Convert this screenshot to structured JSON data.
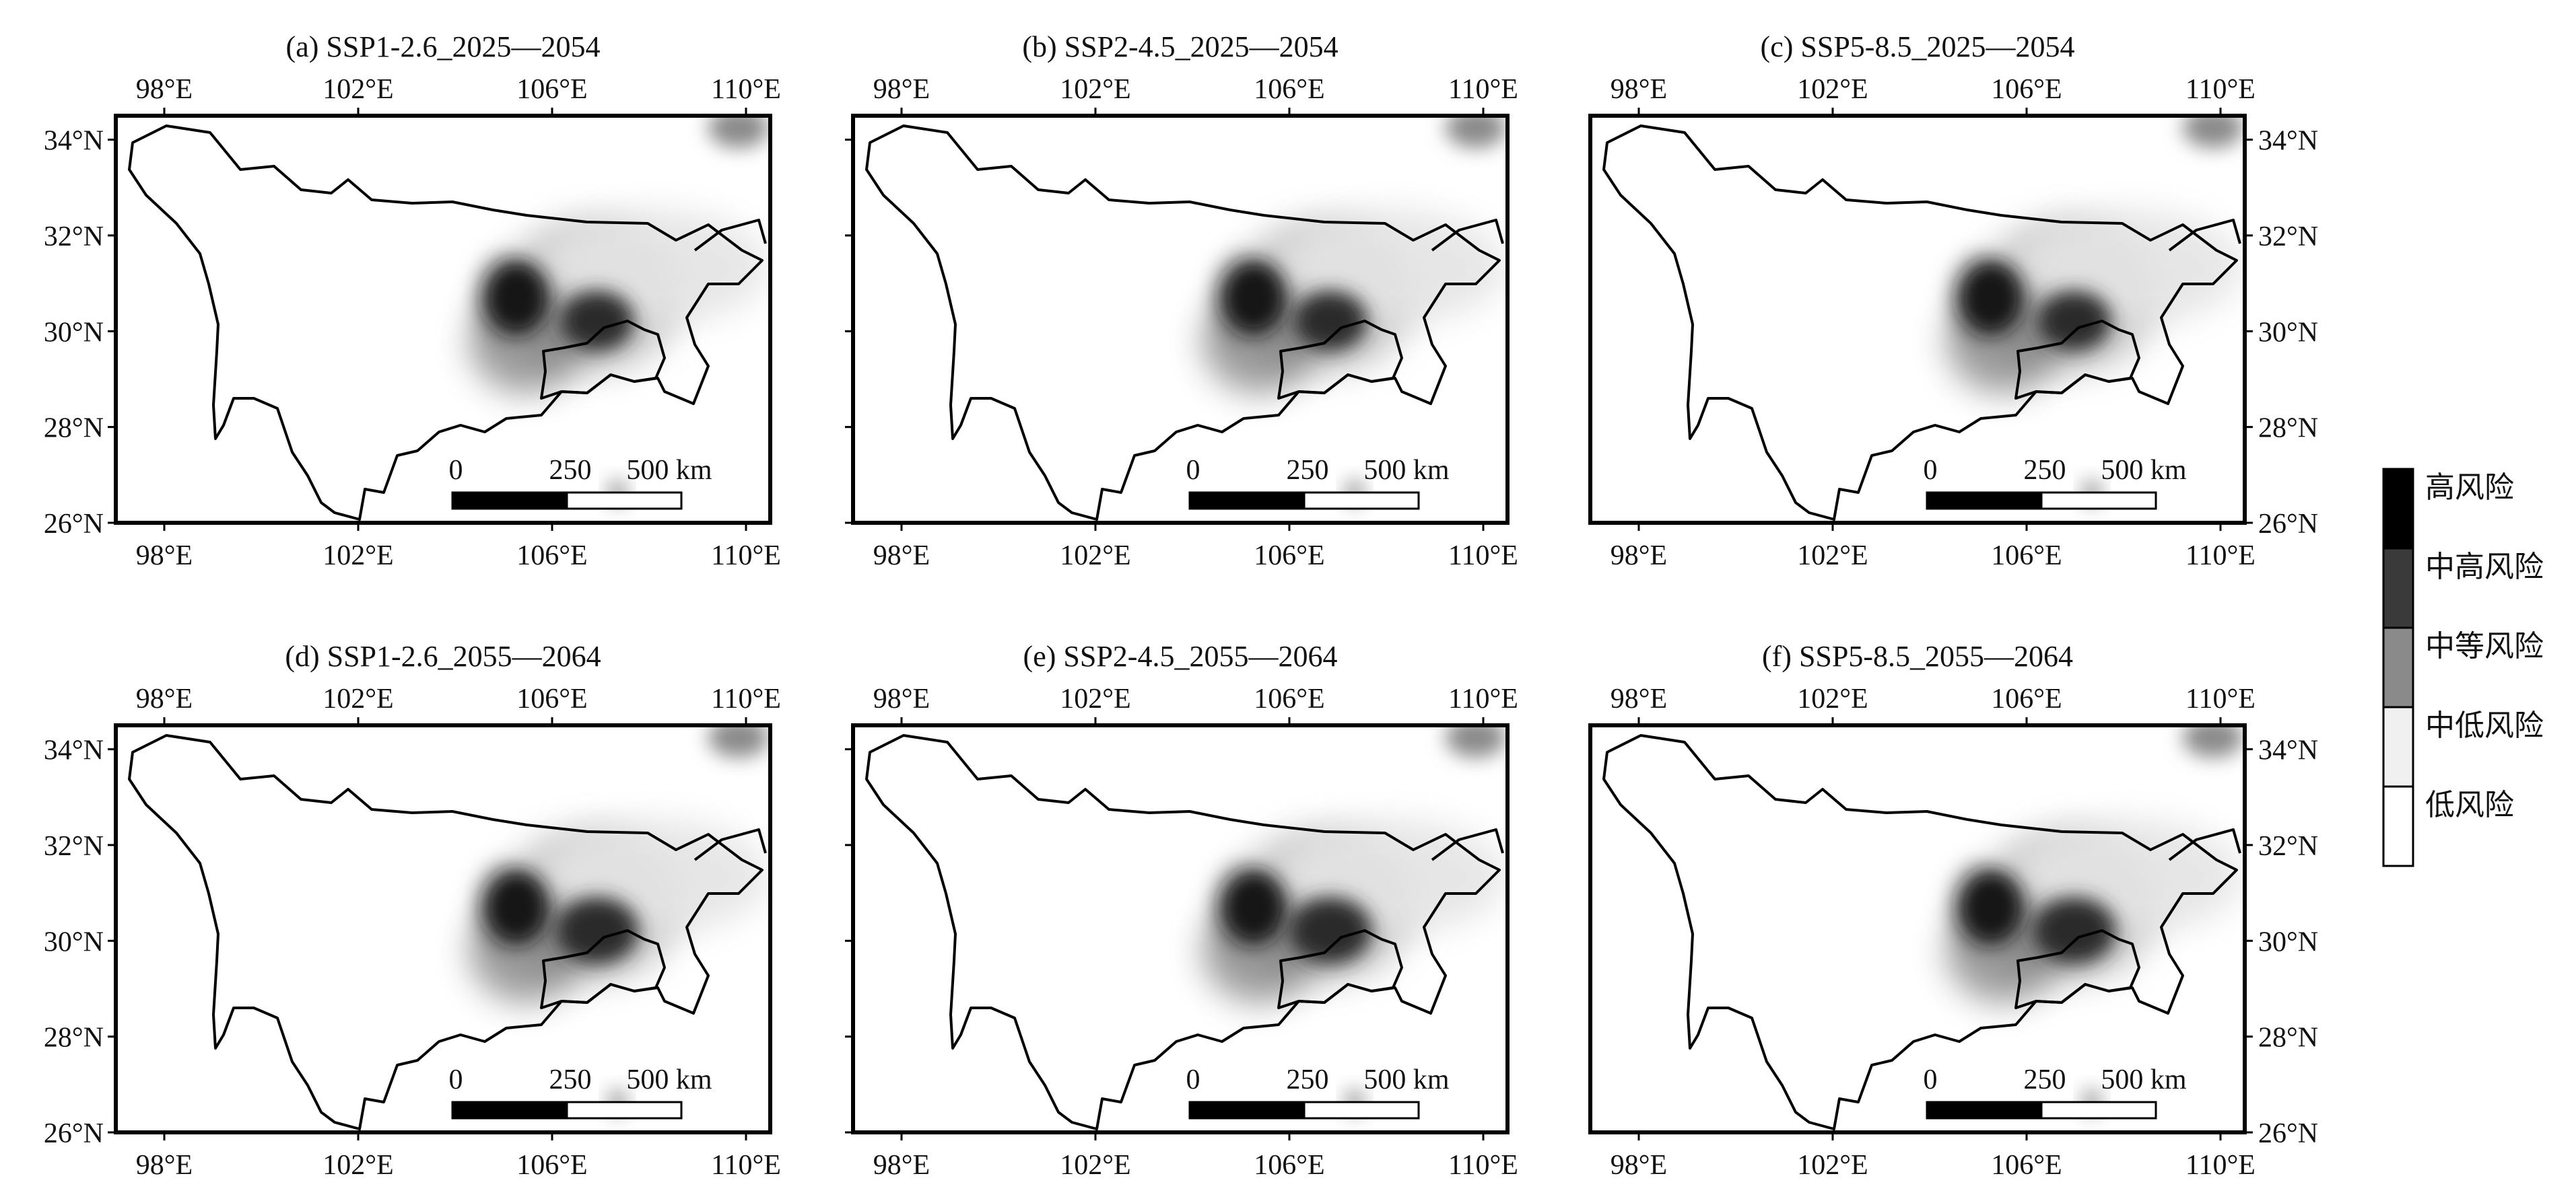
{
  "panels": [
    {
      "title": "(a) SSP1-2.6_2025—2054",
      "scenario": "ssp126",
      "period": "early"
    },
    {
      "title": "(b) SSP2-4.5_2025—2054",
      "scenario": "ssp245",
      "period": "early"
    },
    {
      "title": "(c) SSP5-8.5_2025—2054",
      "scenario": "ssp585",
      "period": "early"
    },
    {
      "title": "(d) SSP1-2.6_2055—2064",
      "scenario": "ssp126",
      "period": "late"
    },
    {
      "title": "(e) SSP2-4.5_2055—2064",
      "scenario": "ssp245",
      "period": "late"
    },
    {
      "title": "(f) SSP5-8.5_2055—2064",
      "scenario": "ssp585",
      "period": "late"
    }
  ],
  "axes": {
    "lon_ticks": [
      "98°E",
      "102°E",
      "106°E",
      "110°E"
    ],
    "lat_ticks": [
      "34°N",
      "32°N",
      "30°N",
      "28°N",
      "26°N"
    ],
    "lon_range": [
      97,
      110.5
    ],
    "lat_range": [
      26,
      34.5
    ]
  },
  "scalebar": {
    "labels": [
      "0",
      "250",
      "500 km"
    ]
  },
  "legend": {
    "items": [
      {
        "label": "高风险",
        "color": "#000000"
      },
      {
        "label": "中高风险",
        "color": "#3a3a3a"
      },
      {
        "label": "中等风险",
        "color": "#8a8a8a"
      },
      {
        "label": "中低风险",
        "color": "#f0f0f0"
      },
      {
        "label": "低风险",
        "color": "#ffffff"
      }
    ]
  }
}
